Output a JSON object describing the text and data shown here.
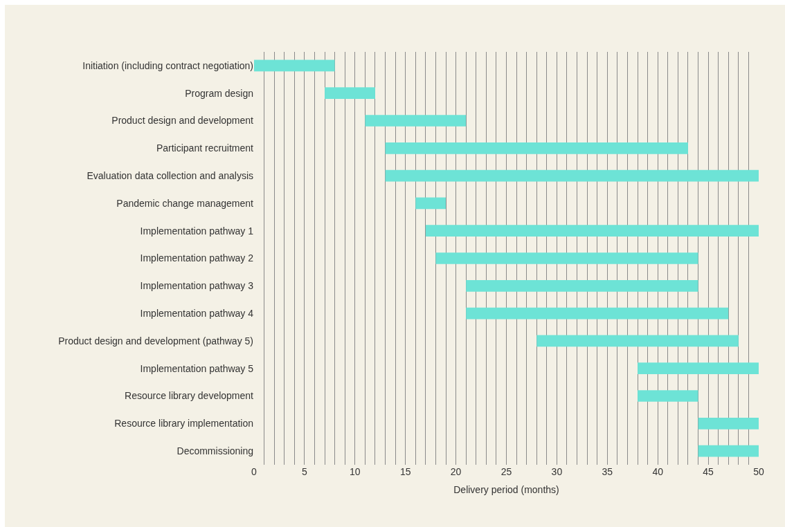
{
  "chart_data": {
    "type": "bar",
    "orientation": "horizontal",
    "xlabel": "Delivery period (months)",
    "categories": [
      "Initiation (including contract negotiation)",
      "Program design",
      "Product design and development",
      "Participant recruitment",
      "Evaluation data collection and analysis",
      "Pandemic change management",
      "Implementation pathway 1",
      "Implementation pathway 2",
      "Implementation pathway 3",
      "Implementation pathway 4",
      "Product design and development (pathway 5)",
      "Implementation pathway 5",
      "Resource library development",
      "Resource library implementation",
      "Decommissioning"
    ],
    "base": [
      0,
      7,
      11,
      13,
      13,
      16,
      17,
      18,
      21,
      21,
      28,
      38,
      38,
      44,
      44
    ],
    "values": [
      8,
      5,
      10,
      30,
      37,
      3,
      33,
      26,
      23,
      26,
      20,
      12,
      6,
      6,
      6
    ],
    "color": "#6de3d6",
    "xlim": [
      0,
      50
    ],
    "xticks": [
      0,
      {
        "value": 1,
        "label": null
      },
      {
        "value": 2,
        "label": null
      },
      {
        "value": 3,
        "label": null
      },
      {
        "value": 4,
        "label": null
      },
      5,
      {
        "value": 6,
        "label": null
      },
      {
        "value": 7,
        "label": null
      },
      {
        "value": 8,
        "label": null
      },
      {
        "value": 9,
        "label": null
      },
      10,
      {
        "value": 11,
        "label": null
      },
      {
        "value": 12,
        "label": null
      },
      {
        "value": 13,
        "label": null
      },
      {
        "value": 14,
        "label": null
      },
      15,
      {
        "value": 16,
        "label": null
      },
      {
        "value": 17,
        "label": null
      },
      {
        "value": 18,
        "label": null
      },
      {
        "value": 19,
        "label": null
      },
      20,
      {
        "value": 21,
        "label": null
      },
      {
        "value": 22,
        "label": null
      },
      {
        "value": 23,
        "label": null
      },
      {
        "value": 24,
        "label": null
      },
      25,
      {
        "value": 26,
        "label": null
      },
      {
        "value": 27,
        "label": null
      },
      {
        "value": 28,
        "label": null
      },
      {
        "value": 29,
        "label": null
      },
      30,
      {
        "value": 31,
        "label": null
      },
      {
        "value": 32,
        "label": null
      },
      {
        "value": 33,
        "label": null
      },
      {
        "value": 34,
        "label": null
      },
      35,
      {
        "value": 36,
        "label": null
      },
      {
        "value": 37,
        "label": null
      },
      {
        "value": 38,
        "label": null
      },
      {
        "value": 39,
        "label": null
      },
      40,
      {
        "value": 41,
        "label": null
      },
      {
        "value": 42,
        "label": null
      },
      {
        "value": 43,
        "label": null
      },
      {
        "value": 44,
        "label": null
      },
      45,
      {
        "value": 46,
        "label": null
      },
      {
        "value": 47,
        "label": null
      },
      {
        "value": 48,
        "label": null
      },
      {
        "value": 49,
        "label": null
      },
      50
    ],
    "grid": "x"
  }
}
